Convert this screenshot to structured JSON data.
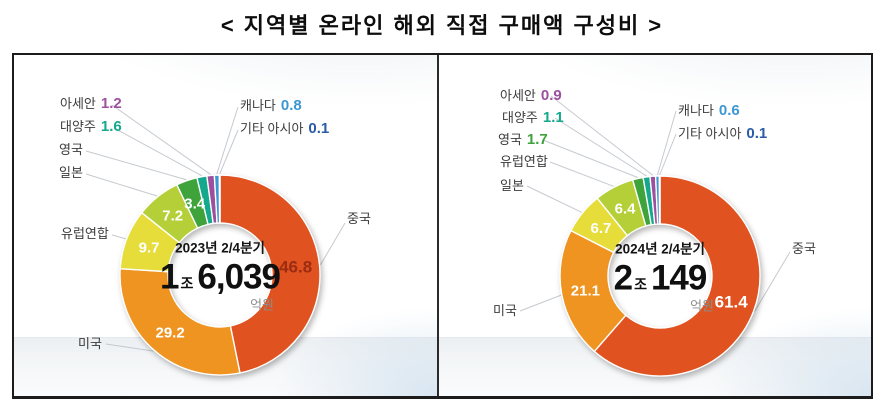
{
  "title": "< 지역별 온라인 해외 직접 구매액 구성비 >",
  "chart_data": [
    {
      "type": "pie",
      "subtype": "donut",
      "title": "2023년 2/4분기",
      "unit": "%",
      "legend_position": "none",
      "start_angle_deg": 0,
      "direction": "clockwise",
      "categories": [
        "중국",
        "미국",
        "유럽연합",
        "일본",
        "영국",
        "대양주",
        "아세안",
        "캐나다",
        "기타 아시아"
      ],
      "values": [
        46.8,
        29.2,
        9.7,
        7.2,
        3.4,
        1.6,
        1.2,
        0.8,
        0.1
      ],
      "colors": [
        "#e0521f",
        "#ef9421",
        "#e6dd3a",
        "#b4cf37",
        "#3fa33c",
        "#14a88c",
        "#9c509d",
        "#3d97d3",
        "#2b5ba6"
      ],
      "value_placement": [
        "slice",
        "slice",
        "slice",
        "slice",
        "slice",
        "label",
        "label",
        "label",
        "label"
      ],
      "slice_value_colors": [
        "#9b2c11",
        "#ffffff",
        "#ffffff",
        "#ffffff",
        "#ffffff",
        "",
        "",
        "",
        ""
      ],
      "center": {
        "period": "2023년 2/4분기",
        "amount_jo": "1",
        "unit_jo": "조",
        "amount_eok": "6,039",
        "unit_eok": "억원"
      }
    },
    {
      "type": "pie",
      "subtype": "donut",
      "title": "2024년 2/4분기",
      "unit": "%",
      "legend_position": "none",
      "start_angle_deg": 0,
      "direction": "clockwise",
      "categories": [
        "중국",
        "미국",
        "일본",
        "유럽연합",
        "영국",
        "대양주",
        "아세안",
        "캐나다",
        "기타 아시아"
      ],
      "values": [
        61.4,
        21.1,
        6.7,
        6.4,
        1.7,
        1.1,
        0.9,
        0.6,
        0.1
      ],
      "colors": [
        "#e0521f",
        "#ef9421",
        "#e6dd3a",
        "#b4cf37",
        "#3fa33c",
        "#14a88c",
        "#9c509d",
        "#3d97d3",
        "#2b5ba6"
      ],
      "value_placement": [
        "slice",
        "slice",
        "slice",
        "slice",
        "label",
        "label",
        "label",
        "label",
        "label"
      ],
      "slice_value_colors": [
        "#ffffff",
        "#ffffff",
        "#ffffff",
        "#ffffff",
        "",
        "",
        "",
        "",
        ""
      ],
      "center": {
        "period": "2024년 2/4분기",
        "amount_jo": "2",
        "unit_jo": "조",
        "amount_eok": "149",
        "unit_eok": "억원"
      }
    }
  ]
}
